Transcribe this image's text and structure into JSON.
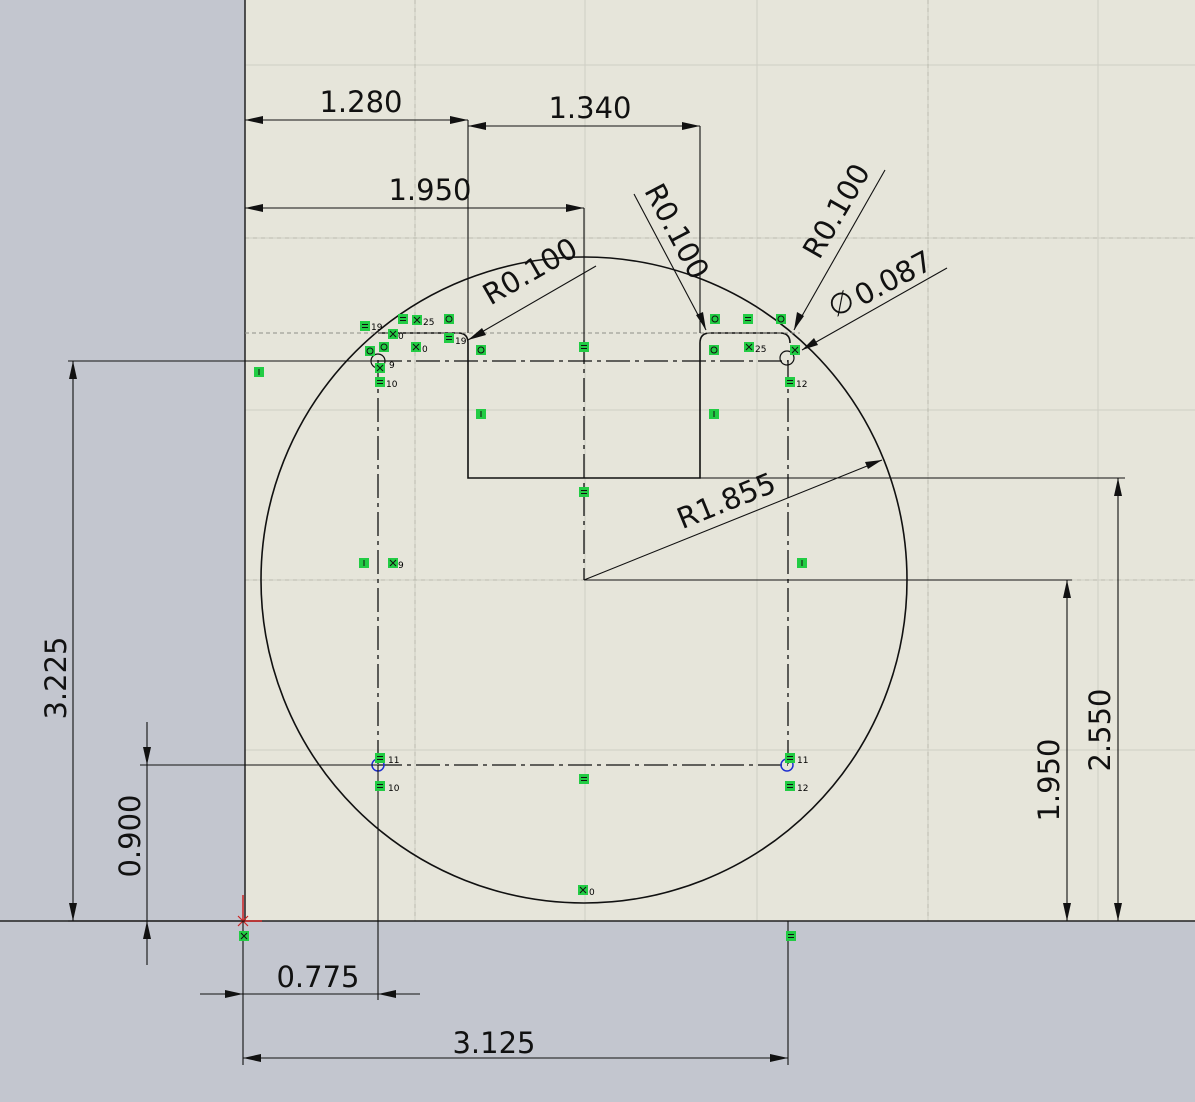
{
  "colors": {
    "sketch_area": "#e6e5da",
    "outside_area": "#c3c6cf",
    "geometry": "#111111",
    "relation_badge": "#22cc44",
    "origin": "#cc2222",
    "point": "#1f2fd0"
  },
  "dimensions": {
    "d1280": "1.280",
    "d1340": "1.340",
    "d1950_top": "1.950",
    "r0100_left": "R0.100",
    "r0100_mid": "R0.100",
    "r0100_right": "R0.100",
    "dia0087": "0.087",
    "dia_symbol": "∅",
    "r1855": "R1.855",
    "d3225": "3.225",
    "d0900": "0.900",
    "d0775": "0.775",
    "d3125": "3.125",
    "d1950_right": "1.950",
    "d2550": "2.550"
  },
  "relation_numbers": {
    "n19": "19",
    "n25a": "25",
    "n0a": "0",
    "n0b": "0",
    "n19b": "19",
    "n9": "9",
    "n10a": "10",
    "n25b": "25",
    "n12a": "12",
    "n9b": "9",
    "n11a": "11",
    "n10b": "10",
    "n11b": "11",
    "n12b": "12",
    "n0c": "0"
  }
}
